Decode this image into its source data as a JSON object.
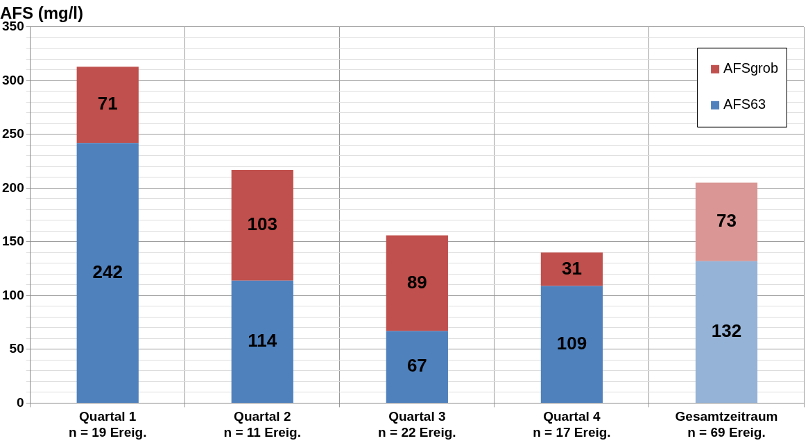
{
  "chart_data": {
    "type": "bar",
    "stacked": true,
    "ylabel": "AFS (mg/l)",
    "categories": [
      "Quartal 1\nn = 19 Ereig.",
      "Quartal 2\nn = 11 Ereig.",
      "Quartal 3\nn = 22 Ereig.",
      "Quartal 4\nn = 17 Ereig.",
      "Gesamtzeitraum\nn = 69 Ereig."
    ],
    "series": [
      {
        "name": "AFS63",
        "colors": [
          "#4f81bd",
          "#4f81bd",
          "#4f81bd",
          "#4f81bd",
          "#95b3d7"
        ],
        "values": [
          242,
          114,
          67,
          109,
          132
        ]
      },
      {
        "name": "AFSgrob",
        "colors": [
          "#c0504d",
          "#c0504d",
          "#c0504d",
          "#c0504d",
          "#d99694"
        ],
        "values": [
          71,
          103,
          89,
          31,
          73
        ]
      }
    ],
    "ylim": [
      0,
      350
    ],
    "yticks": [
      0,
      {
        "value": 10,
        "label": null
      },
      {
        "value": 20,
        "label": null
      },
      {
        "value": 30,
        "label": null
      },
      {
        "value": 40,
        "label": null
      },
      50,
      {
        "value": 60,
        "label": null
      },
      {
        "value": 70,
        "label": null
      },
      {
        "value": 80,
        "label": null
      },
      {
        "value": 90,
        "label": null
      },
      100,
      {
        "value": 110,
        "label": null
      },
      {
        "value": 120,
        "label": null
      },
      {
        "value": 130,
        "label": null
      },
      {
        "value": 140,
        "label": null
      },
      150,
      {
        "value": 160,
        "label": null
      },
      {
        "value": 170,
        "label": null
      },
      {
        "value": 180,
        "label": null
      },
      {
        "value": 190,
        "label": null
      },
      200,
      {
        "value": 210,
        "label": null
      },
      {
        "value": 220,
        "label": null
      },
      {
        "value": 230,
        "label": null
      },
      {
        "value": 240,
        "label": null
      },
      250,
      {
        "value": 260,
        "label": null
      },
      {
        "value": 270,
        "label": null
      },
      {
        "value": 280,
        "label": null
      },
      {
        "value": 290,
        "label": null
      },
      300,
      {
        "value": 310,
        "label": null
      },
      {
        "value": 320,
        "label": null
      },
      {
        "value": 330,
        "label": null
      },
      {
        "value": 340,
        "label": null
      },
      350
    ],
    "grid": true,
    "legend": "top right",
    "data_labels": true
  }
}
